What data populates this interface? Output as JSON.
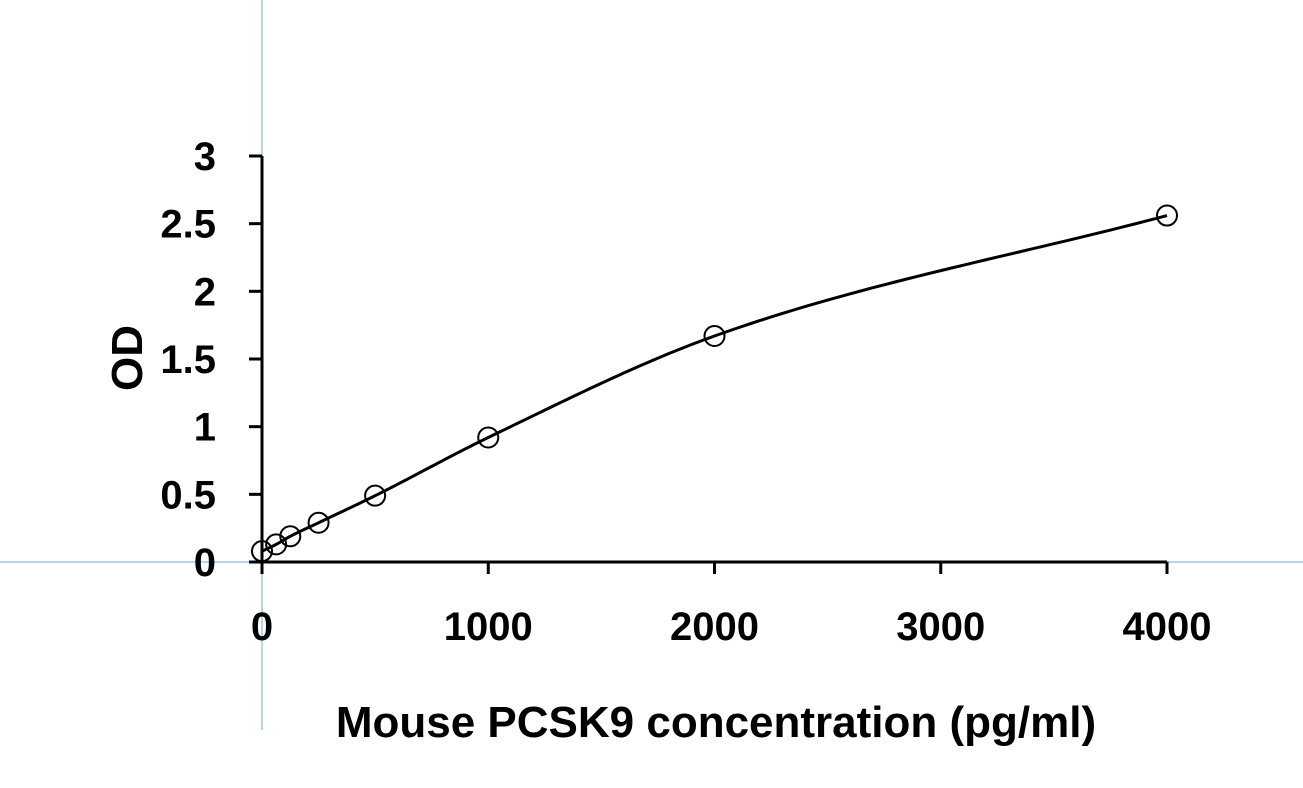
{
  "chart_data": {
    "type": "scatter",
    "xlabel": "Mouse PCSK9 concentration (pg/ml)",
    "ylabel": "OD",
    "xlim": [
      0,
      4000
    ],
    "ylim": [
      0,
      3
    ],
    "xticks": [
      0,
      1000,
      2000,
      3000,
      4000
    ],
    "yticks": [
      0,
      0.5,
      1,
      1.5,
      2,
      2.5,
      3
    ],
    "ytick_labels": [
      "0",
      "0.5",
      "1",
      "1.5",
      "2",
      "2.5",
      "3"
    ],
    "grid": false,
    "legend": "none",
    "series": [
      {
        "marker": "open-circle",
        "fit_line": "smooth-curve",
        "x": [
          0,
          62.5,
          125,
          250,
          500,
          1000,
          2000,
          4000
        ],
        "y": [
          0.08,
          0.13,
          0.19,
          0.29,
          0.49,
          0.92,
          1.67,
          2.56
        ]
      }
    ],
    "crosshair": {
      "x": 0,
      "y": 0,
      "color": "#6fa8dc"
    }
  }
}
